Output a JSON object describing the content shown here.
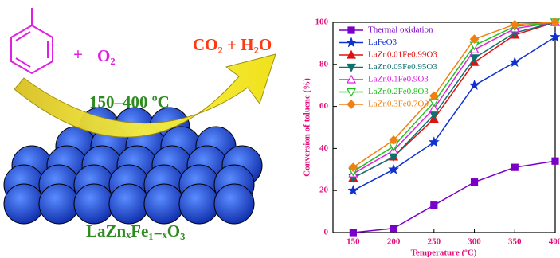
{
  "scheme": {
    "plus": "+",
    "reactant": "O₂",
    "products": "CO₂ + H₂O",
    "temperature": "150–400 ºC",
    "catalyst": "LaZnₓFe₁₋ₓO₃"
  },
  "chart_data": {
    "type": "line",
    "xlabel": "Temperature (ºC)",
    "ylabel": "Conversion of toluene (%)",
    "x": [
      150,
      200,
      250,
      300,
      350,
      400
    ],
    "xlim": [
      125,
      400
    ],
    "xticks": [
      150,
      200,
      250,
      300,
      350,
      400
    ],
    "ylim": [
      0,
      100
    ],
    "yticks": [
      0,
      20,
      40,
      60,
      80,
      100
    ],
    "legend": "upper left",
    "series": [
      {
        "name": "Thermal oxidation",
        "color": "#7a00c8",
        "marker": "square",
        "filled": true,
        "values": [
          0,
          2,
          13,
          24,
          31,
          34
        ]
      },
      {
        "name": "LaFeO3",
        "color": "#1030d0",
        "marker": "star",
        "filled": true,
        "values": [
          20,
          30,
          43,
          70,
          81,
          93
        ]
      },
      {
        "name": "LaZn0.01Fe0.99O3",
        "color": "#e01010",
        "marker": "triangle",
        "filled": true,
        "values": [
          26,
          36,
          54,
          81,
          94,
          100
        ]
      },
      {
        "name": "LaZn0.05Fe0.95O3",
        "color": "#107070",
        "marker": "down",
        "filled": true,
        "values": [
          26,
          36,
          56,
          83,
          95,
          100
        ]
      },
      {
        "name": "LaZn0.1Fe0.9O3",
        "color": "#e020e0",
        "marker": "triangle",
        "filled": false,
        "values": [
          28,
          39,
          59,
          87,
          97,
          100
        ]
      },
      {
        "name": "LaZn0.2Fe0.8O3",
        "color": "#20c020",
        "marker": "down",
        "filled": false,
        "values": [
          29,
          41,
          62,
          89,
          98,
          100
        ]
      },
      {
        "name": "LaZn0.3Fe0.7O3",
        "color": "#f08010",
        "marker": "diamond",
        "filled": true,
        "values": [
          31,
          44,
          65,
          92,
          99,
          100
        ]
      }
    ]
  }
}
